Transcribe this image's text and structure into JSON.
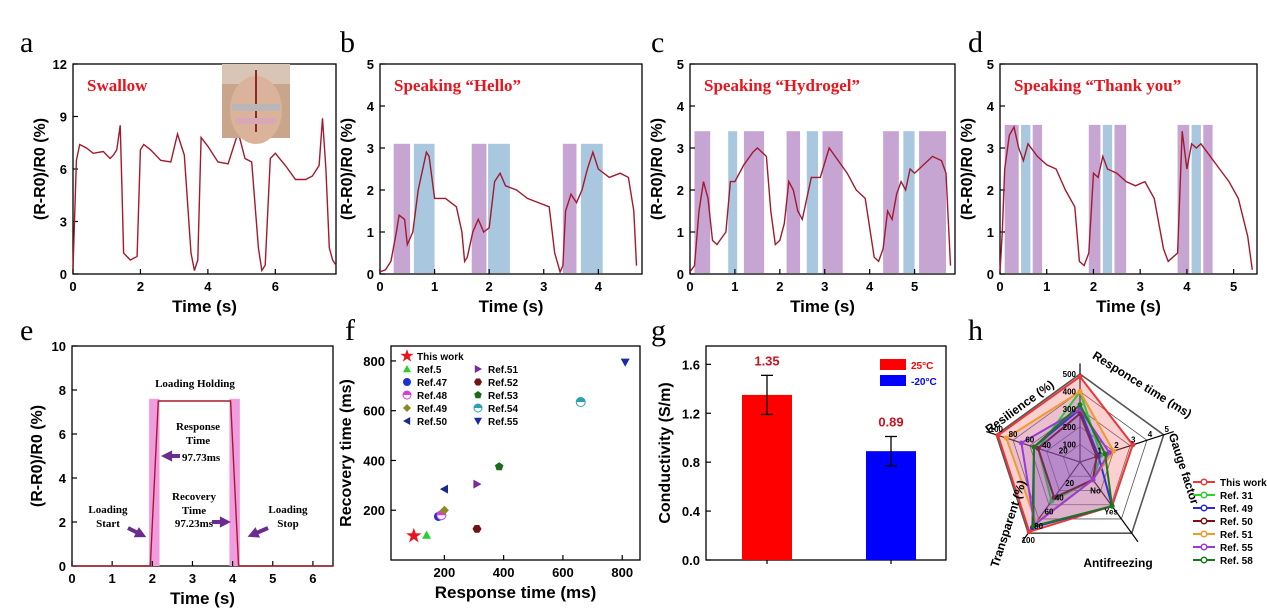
{
  "colors": {
    "trace": "#a3192e",
    "purple": "#c7a5d2",
    "blue": "#a9c8e0",
    "pink": "#f29ce0",
    "arrow": "#6a2d8f",
    "red_bar": "#ff0000",
    "blue_bar": "#0000ff"
  },
  "chart_data": [
    {
      "panel": "a",
      "type": "line",
      "annotation": "Swallow",
      "xlabel": "Time (s)",
      "ylabel": "(R-R0)/R0 (%)",
      "xlim": [
        0,
        7.8
      ],
      "ylim": [
        0,
        12
      ],
      "xticks": [
        "0",
        "2",
        "4",
        "6"
      ],
      "yticks": [
        "0",
        "3",
        "6",
        "9",
        "12"
      ],
      "x": [
        0,
        0.1,
        0.2,
        0.4,
        0.6,
        0.9,
        1.1,
        1.2,
        1.3,
        1.4,
        1.45,
        1.5,
        1.7,
        1.9,
        2.0,
        2.1,
        2.3,
        2.6,
        2.9,
        3.1,
        3.3,
        3.5,
        3.6,
        3.7,
        3.8,
        4.0,
        4.3,
        4.6,
        4.9,
        5.1,
        5.3,
        5.5,
        5.6,
        5.7,
        5.85,
        6.0,
        6.3,
        6.6,
        6.9,
        7.1,
        7.3,
        7.4,
        7.5,
        7.6,
        7.7,
        7.8
      ],
      "y": [
        0.3,
        6.5,
        7.4,
        7.2,
        6.9,
        7.0,
        6.6,
        6.8,
        7.1,
        8.5,
        5.0,
        1.2,
        0.8,
        1.0,
        7.1,
        7.4,
        7.1,
        6.5,
        6.4,
        8.0,
        6.8,
        1.2,
        0.2,
        0.8,
        7.8,
        7.3,
        6.4,
        6.3,
        8.1,
        6.6,
        6.4,
        1.5,
        0.2,
        0.5,
        6.6,
        6.9,
        6.2,
        5.4,
        5.4,
        5.6,
        6.2,
        8.9,
        6.0,
        1.5,
        0.8,
        0.5
      ]
    },
    {
      "panel": "b",
      "type": "line",
      "annotation": "Speaking “Hello”",
      "xlabel": "Time (s)",
      "ylabel": "(R-R0)/R0 (%)",
      "xlim": [
        0,
        4.8
      ],
      "ylim": [
        0,
        5
      ],
      "xticks": [
        "0",
        "1",
        "2",
        "3",
        "4"
      ],
      "yticks": [
        "0",
        "1",
        "2",
        "3",
        "4",
        "5"
      ],
      "bands": [
        {
          "x0": 0.25,
          "x1": 0.55,
          "c": "purple"
        },
        {
          "x0": 0.62,
          "x1": 1.0,
          "c": "blue"
        },
        {
          "x0": 1.68,
          "x1": 1.95,
          "c": "purple"
        },
        {
          "x0": 1.98,
          "x1": 2.38,
          "c": "blue"
        },
        {
          "x0": 3.35,
          "x1": 3.6,
          "c": "purple"
        },
        {
          "x0": 3.68,
          "x1": 4.08,
          "c": "blue"
        }
      ],
      "band_top": 3.1,
      "x": [
        0,
        0.1,
        0.2,
        0.3,
        0.35,
        0.45,
        0.5,
        0.6,
        0.7,
        0.85,
        0.9,
        1.0,
        1.2,
        1.4,
        1.5,
        1.55,
        1.6,
        1.7,
        1.8,
        1.9,
        2.0,
        2.1,
        2.2,
        2.3,
        2.5,
        2.7,
        2.9,
        3.1,
        3.2,
        3.3,
        3.35,
        3.4,
        3.5,
        3.6,
        3.7,
        3.8,
        3.9,
        4.0,
        4.2,
        4.4,
        4.55,
        4.65,
        4.7
      ],
      "y": [
        0.05,
        0.1,
        0.3,
        1.0,
        1.4,
        1.3,
        0.7,
        1.0,
        2.0,
        2.9,
        2.8,
        1.8,
        1.8,
        1.6,
        1.0,
        0.3,
        0.4,
        1.0,
        1.3,
        1.0,
        1.1,
        2.2,
        2.4,
        2.1,
        2.0,
        1.8,
        1.7,
        1.6,
        0.5,
        0.05,
        0.2,
        1.5,
        1.9,
        1.7,
        2.0,
        2.5,
        2.9,
        2.5,
        2.3,
        2.4,
        2.3,
        1.5,
        0.2
      ]
    },
    {
      "panel": "c",
      "type": "line",
      "annotation": "Speaking “Hydrogel”",
      "xlabel": "Time (s)",
      "ylabel": "(R-R0)/R0 (%)",
      "xlim": [
        0,
        5.9
      ],
      "ylim": [
        0,
        5
      ],
      "xticks": [
        "0",
        "1",
        "2",
        "3",
        "4",
        "5"
      ],
      "yticks": [
        "0",
        "1",
        "2",
        "3",
        "4",
        "5"
      ],
      "bands": [
        {
          "x0": 0.1,
          "x1": 0.45,
          "c": "purple"
        },
        {
          "x0": 0.85,
          "x1": 1.05,
          "c": "blue"
        },
        {
          "x0": 1.2,
          "x1": 1.65,
          "c": "purple"
        },
        {
          "x0": 2.15,
          "x1": 2.45,
          "c": "purple"
        },
        {
          "x0": 2.6,
          "x1": 2.85,
          "c": "blue"
        },
        {
          "x0": 2.95,
          "x1": 3.4,
          "c": "purple"
        },
        {
          "x0": 4.3,
          "x1": 4.65,
          "c": "purple"
        },
        {
          "x0": 4.75,
          "x1": 5.0,
          "c": "blue"
        },
        {
          "x0": 5.1,
          "x1": 5.7,
          "c": "purple"
        }
      ],
      "band_top": 3.4,
      "x": [
        0,
        0.1,
        0.2,
        0.3,
        0.4,
        0.5,
        0.6,
        0.8,
        0.9,
        1.0,
        1.2,
        1.4,
        1.5,
        1.7,
        1.8,
        1.9,
        2.0,
        2.1,
        2.2,
        2.3,
        2.4,
        2.5,
        2.7,
        2.9,
        3.1,
        3.3,
        3.5,
        3.7,
        3.9,
        4.1,
        4.2,
        4.3,
        4.4,
        4.5,
        4.6,
        4.7,
        4.8,
        4.9,
        5.0,
        5.2,
        5.4,
        5.6,
        5.7,
        5.8
      ],
      "y": [
        0.05,
        0.2,
        1.5,
        2.2,
        1.8,
        0.8,
        0.7,
        1.0,
        2.2,
        2.2,
        2.6,
        2.9,
        3.0,
        2.8,
        1.5,
        0.7,
        0.8,
        1.2,
        2.2,
        2.0,
        1.5,
        1.3,
        2.3,
        2.3,
        3.0,
        2.7,
        2.4,
        2.0,
        1.8,
        0.4,
        0.3,
        0.6,
        1.5,
        1.3,
        1.9,
        2.2,
        2.0,
        2.5,
        2.4,
        2.6,
        2.8,
        2.7,
        2.4,
        0.2
      ]
    },
    {
      "panel": "d",
      "type": "line",
      "annotation": "Speaking “Thank you”",
      "xlabel": "Time (s)",
      "ylabel": "(R-R0)/R0 (%)",
      "xlim": [
        0,
        5.5
      ],
      "ylim": [
        0,
        5
      ],
      "xticks": [
        "0",
        "1",
        "2",
        "3",
        "4",
        "5"
      ],
      "yticks": [
        "0",
        "1",
        "2",
        "3",
        "4",
        "5"
      ],
      "bands": [
        {
          "x0": 0.1,
          "x1": 0.4,
          "c": "purple"
        },
        {
          "x0": 0.45,
          "x1": 0.65,
          "c": "blue"
        },
        {
          "x0": 0.7,
          "x1": 0.9,
          "c": "purple"
        },
        {
          "x0": 1.9,
          "x1": 2.15,
          "c": "purple"
        },
        {
          "x0": 2.2,
          "x1": 2.4,
          "c": "blue"
        },
        {
          "x0": 2.45,
          "x1": 2.7,
          "c": "purple"
        },
        {
          "x0": 3.8,
          "x1": 4.05,
          "c": "purple"
        },
        {
          "x0": 4.1,
          "x1": 4.3,
          "c": "blue"
        },
        {
          "x0": 4.35,
          "x1": 4.55,
          "c": "purple"
        }
      ],
      "band_top": 3.55,
      "x": [
        0,
        0.05,
        0.1,
        0.2,
        0.3,
        0.4,
        0.5,
        0.6,
        0.8,
        1.0,
        1.2,
        1.4,
        1.6,
        1.7,
        1.8,
        1.9,
        2.0,
        2.1,
        2.2,
        2.3,
        2.5,
        2.7,
        2.9,
        3.1,
        3.3,
        3.5,
        3.6,
        3.7,
        3.8,
        3.9,
        4.0,
        4.1,
        4.2,
        4.3,
        4.5,
        4.7,
        4.9,
        5.1,
        5.3,
        5.4
      ],
      "y": [
        0.05,
        1.0,
        2.5,
        3.3,
        3.5,
        3.0,
        2.7,
        3.1,
        2.8,
        2.6,
        2.5,
        2.0,
        1.6,
        0.3,
        0.2,
        0.5,
        2.4,
        2.3,
        2.8,
        2.5,
        2.4,
        2.2,
        2.1,
        2.2,
        1.8,
        0.6,
        0.3,
        0.4,
        0.5,
        3.4,
        2.5,
        3.1,
        3.0,
        3.1,
        2.8,
        2.5,
        2.2,
        1.8,
        0.9,
        0.1
      ]
    },
    {
      "panel": "e",
      "type": "line",
      "xlabel": "Time (s)",
      "ylabel": "(R-R0)/R0 (%)",
      "xlim": [
        0,
        6.5
      ],
      "ylim": [
        0,
        10
      ],
      "xticks": [
        "0",
        "1",
        "2",
        "3",
        "4",
        "5",
        "6"
      ],
      "yticks": [
        "0",
        "2",
        "4",
        "6",
        "8",
        "10"
      ],
      "x": [
        0,
        1.95,
        2.15,
        3.95,
        4.15,
        6.5
      ],
      "y": [
        0,
        0,
        7.5,
        7.5,
        0,
        0
      ],
      "bands": [
        {
          "x0": 1.92,
          "x1": 2.18
        },
        {
          "x0": 3.92,
          "x1": 4.18
        }
      ],
      "band_top": 7.6,
      "labels": {
        "holding": "Loading Holding",
        "response_1": "Response",
        "response_2": "Time",
        "response_val": "97.73ms",
        "recovery_1": "Recovery",
        "recovery_2": "Time",
        "recovery_val": "97.23ms",
        "start_1": "Loading",
        "start_2": "Start",
        "stop_1": "Loading",
        "stop_2": "Stop"
      }
    },
    {
      "panel": "f",
      "type": "scatter",
      "xlabel": "Response time (ms)",
      "ylabel": "Recovery time (ms)",
      "xlim": [
        20,
        860
      ],
      "ylim": [
        0,
        860
      ],
      "xticks": [
        200,
        400,
        600,
        800
      ],
      "yticks": [
        200,
        400,
        600,
        800
      ],
      "points": [
        {
          "name": "This work",
          "x": 97,
          "y": 97,
          "marker": "star",
          "color": "#e8141e"
        },
        {
          "name": "Ref.5",
          "x": 140,
          "y": 100,
          "marker": "triangle",
          "color": "#25d12a"
        },
        {
          "name": "Ref.47",
          "x": 180,
          "y": 175,
          "marker": "circle",
          "color": "#1f2fd6"
        },
        {
          "name": "Ref.48",
          "x": 190,
          "y": 180,
          "marker": "halfcircle",
          "color": "#d63fd0"
        },
        {
          "name": "Ref.49",
          "x": 200,
          "y": 200,
          "marker": "diamond",
          "color": "#8a8a1f"
        },
        {
          "name": "Ref.50",
          "x": 200,
          "y": 285,
          "marker": "tri-left",
          "color": "#1a2a8c"
        },
        {
          "name": "Ref.51",
          "x": 310,
          "y": 305,
          "marker": "tri-right",
          "color": "#7a2a9a"
        },
        {
          "name": "Ref.52",
          "x": 310,
          "y": 125,
          "marker": "hexagon",
          "color": "#6e1414"
        },
        {
          "name": "Ref.53",
          "x": 385,
          "y": 375,
          "marker": "pentagon",
          "color": "#1d6a1d"
        },
        {
          "name": "Ref.54",
          "x": 660,
          "y": 635,
          "marker": "halfcircle2",
          "color": "#2aa0b0"
        },
        {
          "name": "Ref.55",
          "x": 810,
          "y": 795,
          "marker": "tri-down",
          "color": "#1a2aa0"
        }
      ]
    },
    {
      "panel": "g",
      "type": "bar",
      "ylabel": "Conductivity (S/m)",
      "ylim": [
        0,
        1.75
      ],
      "yticks": [
        "0.0",
        "0.4",
        "0.8",
        "1.2",
        "1.6"
      ],
      "series": [
        {
          "name": "25°C",
          "value": 1.35,
          "label": "1.35",
          "err": 0.16,
          "color": "#ff0000"
        },
        {
          "name": "-20°C",
          "value": 0.89,
          "label": "0.89",
          "err": 0.12,
          "color": "#0000ff"
        }
      ],
      "legend": "top-right"
    },
    {
      "panel": "h",
      "type": "radar",
      "axes": [
        "Responce time (ms)",
        "Gauge factor",
        "Antifreezing",
        "Transparent (%)",
        "Resilience (%)"
      ],
      "axis_ticks": [
        [
          "100",
          "200",
          "300",
          "400",
          "500"
        ],
        [
          "1",
          "2",
          "3",
          "4",
          "5"
        ],
        [
          "No",
          "Yes"
        ],
        [
          "20",
          "40",
          "60",
          "80",
          "100"
        ],
        [
          "20",
          "40",
          "60",
          "80",
          "100"
        ]
      ],
      "series": [
        {
          "name": "This work",
          "color": "#e8383a",
          "fill": true,
          "values": [
            0.97,
            0.63,
            0.62,
            0.98,
            0.98
          ]
        },
        {
          "name": "Ref. 31",
          "color": "#2ad42a",
          "values": [
            0.8,
            0.25,
            0.25,
            0.55,
            0.5
          ]
        },
        {
          "name": "Ref. 49",
          "color": "#2a2ad6",
          "values": [
            0.6,
            0.22,
            0.62,
            0.92,
            0.55
          ]
        },
        {
          "name": "Ref. 50",
          "color": "#7a1414",
          "values": [
            0.55,
            0.2,
            0.25,
            0.5,
            0.5
          ]
        },
        {
          "name": "Ref. 51",
          "color": "#f29a2a",
          "values": [
            0.8,
            0.4,
            0.25,
            0.85,
            0.88
          ]
        },
        {
          "name": "Ref. 55",
          "color": "#9a3ad6",
          "values": [
            0.6,
            0.35,
            0.25,
            0.88,
            0.7
          ]
        },
        {
          "name": "Ref. 58",
          "color": "#1a7a1a",
          "values": [
            0.65,
            0.3,
            0.62,
            0.9,
            0.55
          ]
        }
      ]
    }
  ]
}
